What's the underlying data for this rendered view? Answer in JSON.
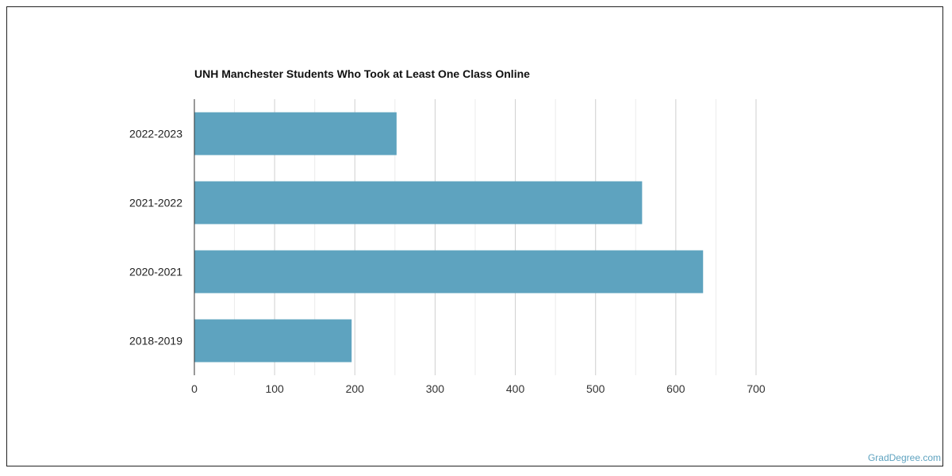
{
  "chart_data": {
    "type": "bar",
    "orientation": "horizontal",
    "title": "UNH Manchester Students Who Took at Least One Class Online",
    "categories": [
      "2022-2023",
      "2021-2022",
      "2020-2021",
      "2018-2019"
    ],
    "values": [
      252,
      558,
      634,
      196
    ],
    "xlabel": "",
    "ylabel": "",
    "xlim": [
      0,
      700
    ],
    "xticks": [
      0,
      100,
      200,
      300,
      400,
      500,
      600,
      700
    ],
    "grid": true,
    "bar_color": "#5ea3bf"
  },
  "watermark": "GradDegree.com"
}
